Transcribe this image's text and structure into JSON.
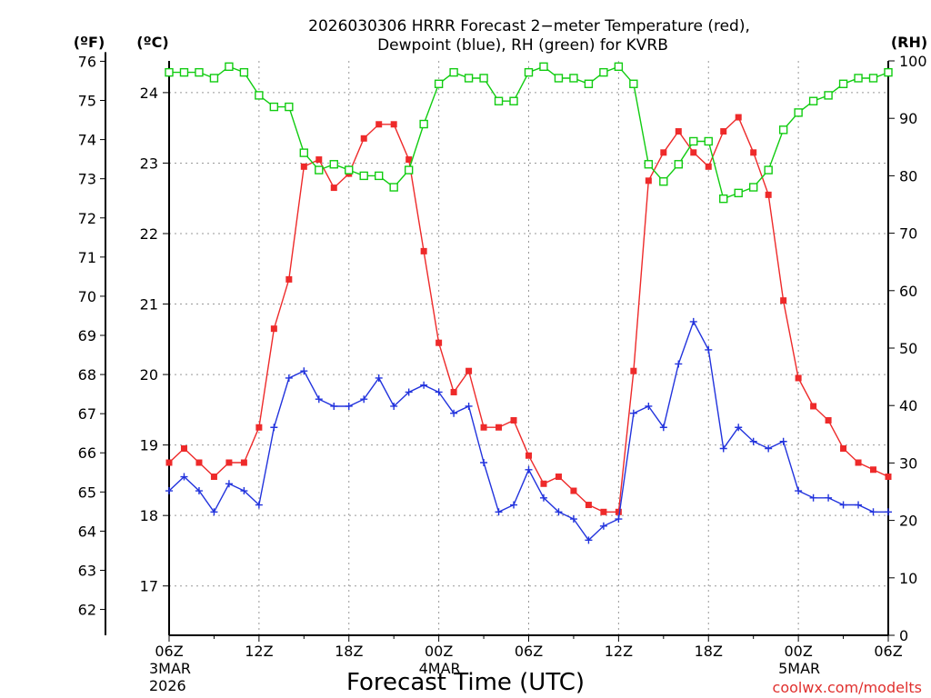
{
  "chart_data": {
    "type": "line",
    "title": "2026030306 HRRR Forecast 2−meter Temperature (red),",
    "subtitle": "Dewpoint (blue), RH (green) for KVRB",
    "xlabel": "Forecast Time (UTC)",
    "credit": "coolwx.com/modelts",
    "units": {
      "left_f": "(ºF)",
      "left_c": "(ºC)",
      "right": "(RH)"
    },
    "x_range_hours": [
      0,
      48
    ],
    "x_ticks": [
      {
        "hour": 0,
        "label": "06Z",
        "date1": "3MAR",
        "date2": "2026"
      },
      {
        "hour": 6,
        "label": "12Z",
        "date1": "",
        "date2": ""
      },
      {
        "hour": 12,
        "label": "18Z",
        "date1": "",
        "date2": ""
      },
      {
        "hour": 18,
        "label": "00Z",
        "date1": "4MAR",
        "date2": ""
      },
      {
        "hour": 24,
        "label": "06Z",
        "date1": "",
        "date2": ""
      },
      {
        "hour": 30,
        "label": "12Z",
        "date1": "",
        "date2": ""
      },
      {
        "hour": 36,
        "label": "18Z",
        "date1": "",
        "date2": ""
      },
      {
        "hour": 42,
        "label": "00Z",
        "date1": "5MAR",
        "date2": ""
      },
      {
        "hour": 48,
        "label": "06Z",
        "date1": "",
        "date2": ""
      }
    ],
    "y_celsius": {
      "range": [
        16.3,
        24.45
      ],
      "ticks": [
        "17",
        "18",
        "19",
        "20",
        "21",
        "22",
        "23",
        "24"
      ]
    },
    "y_fahrenheit": {
      "ticks": [
        "62",
        "63",
        "64",
        "65",
        "66",
        "67",
        "68",
        "69",
        "70",
        "71",
        "72",
        "73",
        "74",
        "75",
        "76"
      ]
    },
    "y_rh": {
      "range": [
        0,
        100
      ],
      "ticks": [
        "0",
        "10",
        "20",
        "30",
        "40",
        "50",
        "60",
        "70",
        "80",
        "90",
        "100"
      ]
    },
    "grid": true,
    "series": [
      {
        "name": "Temperature",
        "color": "#ee2a2a",
        "marker": "filled-square",
        "axis": "celsius",
        "values": [
          18.75,
          18.95,
          18.75,
          18.55,
          18.75,
          18.75,
          19.25,
          20.65,
          21.35,
          22.95,
          23.05,
          22.65,
          22.85,
          23.35,
          23.55,
          23.55,
          23.05,
          21.75,
          20.45,
          19.75,
          20.05,
          19.25,
          19.25,
          19.35,
          18.85,
          18.45,
          18.55,
          18.35,
          18.15,
          18.05,
          18.05,
          20.05,
          22.75,
          23.15,
          23.45,
          23.15,
          22.95,
          23.45,
          23.65,
          23.15,
          22.55,
          21.05,
          19.95,
          19.55,
          19.35,
          18.95,
          18.75,
          18.65,
          18.55
        ]
      },
      {
        "name": "Dewpoint",
        "color": "#2233dd",
        "marker": "plus",
        "axis": "celsius",
        "values": [
          18.35,
          18.55,
          18.35,
          18.05,
          18.45,
          18.35,
          18.15,
          19.25,
          19.95,
          20.05,
          19.65,
          19.55,
          19.55,
          19.65,
          19.95,
          19.55,
          19.75,
          19.85,
          19.75,
          19.45,
          19.55,
          18.75,
          18.05,
          18.15,
          18.65,
          18.25,
          18.05,
          17.95,
          17.65,
          17.85,
          17.95,
          19.45,
          19.55,
          19.25,
          20.15,
          20.75,
          20.35,
          18.95,
          19.25,
          19.05,
          18.95,
          19.05,
          18.35,
          18.25,
          18.25,
          18.15,
          18.15,
          18.05,
          18.05
        ]
      },
      {
        "name": "RH",
        "color": "#11cc11",
        "marker": "open-square",
        "axis": "rh",
        "values": [
          98,
          98,
          98,
          97,
          99,
          98,
          94,
          92,
          92,
          84,
          81,
          82,
          81,
          80,
          80,
          78,
          81,
          89,
          96,
          98,
          97,
          97,
          93,
          93,
          98,
          99,
          97,
          97,
          96,
          98,
          99,
          96,
          82,
          79,
          82,
          86,
          86,
          76,
          77,
          78,
          81,
          88,
          91,
          93,
          94,
          96,
          97,
          97,
          98
        ]
      }
    ]
  }
}
